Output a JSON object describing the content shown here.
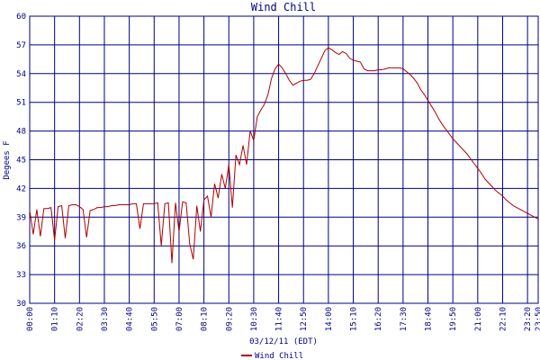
{
  "chart_data": {
    "type": "line",
    "title": "Wind Chill",
    "x_label": "03/12/11 (EDT)",
    "y_label": "Degees F",
    "xlim": [
      0,
      1430
    ],
    "ylim": [
      30,
      60
    ],
    "yticks": [
      30,
      33,
      36,
      39,
      42,
      45,
      48,
      51,
      54,
      57,
      60
    ],
    "xticks": [
      {
        "value": 0,
        "label": "00:00"
      },
      {
        "value": 70,
        "label": "01:10"
      },
      {
        "value": 140,
        "label": "02:20"
      },
      {
        "value": 210,
        "label": "03:30"
      },
      {
        "value": 280,
        "label": "04:40"
      },
      {
        "value": 350,
        "label": "05:50"
      },
      {
        "value": 420,
        "label": "07:00"
      },
      {
        "value": 490,
        "label": "08:10"
      },
      {
        "value": 560,
        "label": "09:20"
      },
      {
        "value": 630,
        "label": "10:30"
      },
      {
        "value": 700,
        "label": "11:40"
      },
      {
        "value": 770,
        "label": "12:50"
      },
      {
        "value": 840,
        "label": "14:00"
      },
      {
        "value": 910,
        "label": "15:10"
      },
      {
        "value": 980,
        "label": "16:20"
      },
      {
        "value": 1050,
        "label": "17:30"
      },
      {
        "value": 1120,
        "label": "18:40"
      },
      {
        "value": 1190,
        "label": "19:50"
      },
      {
        "value": 1260,
        "label": "21:00"
      },
      {
        "value": 1330,
        "label": "22:10"
      },
      {
        "value": 1400,
        "label": "23:20"
      },
      {
        "value": 1430,
        "label": "23:50"
      }
    ],
    "grid": true,
    "legend": "bottom",
    "x": [
      0,
      10,
      20,
      30,
      40,
      50,
      60,
      70,
      80,
      90,
      100,
      110,
      120,
      130,
      140,
      150,
      160,
      170,
      180,
      190,
      200,
      210,
      220,
      230,
      240,
      250,
      260,
      270,
      280,
      290,
      300,
      310,
      320,
      330,
      340,
      350,
      360,
      370,
      380,
      390,
      400,
      410,
      420,
      430,
      440,
      450,
      460,
      470,
      480,
      490,
      500,
      510,
      520,
      530,
      540,
      550,
      560,
      570,
      580,
      590,
      600,
      610,
      620,
      630,
      640,
      650,
      660,
      670,
      680,
      690,
      700,
      710,
      720,
      730,
      740,
      750,
      760,
      770,
      780,
      790,
      800,
      810,
      820,
      830,
      840,
      850,
      860,
      870,
      880,
      890,
      900,
      910,
      920,
      930,
      940,
      950,
      960,
      970,
      980,
      990,
      1000,
      1010,
      1020,
      1030,
      1040,
      1050,
      1060,
      1070,
      1080,
      1090,
      1100,
      1110,
      1120,
      1130,
      1140,
      1150,
      1160,
      1170,
      1180,
      1190,
      1200,
      1210,
      1220,
      1230,
      1240,
      1250,
      1260,
      1270,
      1280,
      1290,
      1300,
      1310,
      1320,
      1330,
      1340,
      1350,
      1360,
      1370,
      1380,
      1390,
      1400,
      1410,
      1420,
      1430
    ],
    "series": [
      {
        "name": "Wind Chill",
        "color": "#b00000",
        "values": [
          39.7,
          37.2,
          39.8,
          37.0,
          39.9,
          39.9,
          40.0,
          36.6,
          40.1,
          40.2,
          36.8,
          40.2,
          40.3,
          40.3,
          40.1,
          39.8,
          36.9,
          39.7,
          39.8,
          40.0,
          40.0,
          40.1,
          40.1,
          40.2,
          40.2,
          40.3,
          40.3,
          40.3,
          40.3,
          40.4,
          40.4,
          37.8,
          40.4,
          40.4,
          40.4,
          40.4,
          40.5,
          36.0,
          40.4,
          40.5,
          34.2,
          40.5,
          37.5,
          40.6,
          40.5,
          36.2,
          34.6,
          40.2,
          37.5,
          40.8,
          41.2,
          39.0,
          42.5,
          41.0,
          43.5,
          42.0,
          44.5,
          40.0,
          45.5,
          44.5,
          46.5,
          44.5,
          48.0,
          47.0,
          49.5,
          50.2,
          50.8,
          51.8,
          53.5,
          54.5,
          55.0,
          54.6,
          54.0,
          53.3,
          52.8,
          53.0,
          53.2,
          53.3,
          53.3,
          53.4,
          54.0,
          54.8,
          55.6,
          56.4,
          56.7,
          56.5,
          56.2,
          56.0,
          56.3,
          56.1,
          55.6,
          55.4,
          55.3,
          55.2,
          54.5,
          54.3,
          54.3,
          54.3,
          54.4,
          54.4,
          54.5,
          54.6,
          54.6,
          54.6,
          54.6,
          54.5,
          54.2,
          53.9,
          53.5,
          53.0,
          52.3,
          51.8,
          51.2,
          50.6,
          50.0,
          49.3,
          48.7,
          48.2,
          47.7,
          47.2,
          46.8,
          46.4,
          46.0,
          45.6,
          45.1,
          44.6,
          44.1,
          43.6,
          43.0,
          42.6,
          42.2,
          41.8,
          41.5,
          41.2,
          40.8,
          40.5,
          40.2,
          40.0,
          39.8,
          39.6,
          39.4,
          39.2,
          39.0,
          38.8
        ]
      }
    ]
  }
}
